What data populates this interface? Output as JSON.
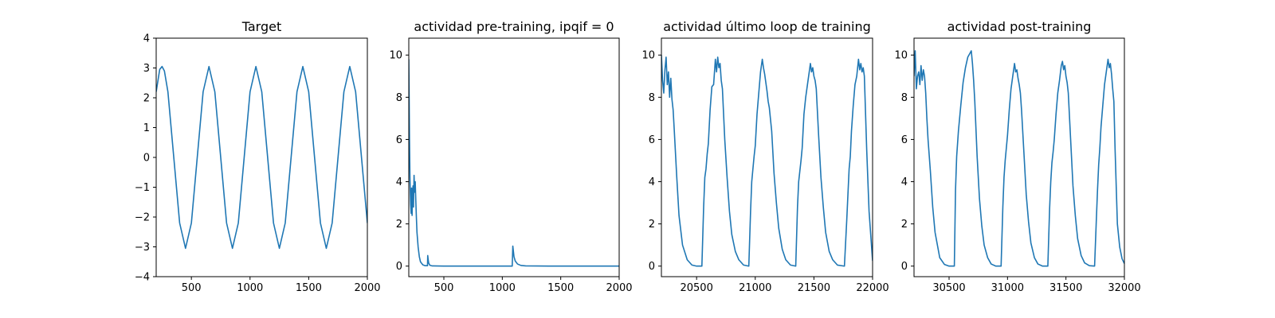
{
  "figure": {
    "line_color": "#1f77b4",
    "background": "#ffffff"
  },
  "chart_data": [
    {
      "type": "line",
      "title": "Target",
      "xlim": [
        200,
        2000
      ],
      "ylim": [
        -4,
        4
      ],
      "xticks": [
        500,
        1000,
        1500,
        2000
      ],
      "yticks": [
        -4,
        -3,
        -2,
        -1,
        0,
        1,
        2,
        3,
        4
      ],
      "xlabel": "",
      "ylabel": "",
      "grid": false,
      "series": [
        {
          "x": [
            200,
            230,
            250,
            270,
            300,
            350,
            400,
            450,
            500,
            550,
            600,
            650,
            700,
            750,
            800,
            850,
            900,
            950,
            1000,
            1050,
            1100,
            1150,
            1200,
            1250,
            1300,
            1350,
            1400,
            1450,
            1500,
            1550,
            1600,
            1650,
            1700,
            1750,
            1800,
            1850,
            1900,
            1950,
            2000
          ],
          "y": [
            2.2,
            2.95,
            3.05,
            2.9,
            2.2,
            0.0,
            -2.2,
            -3.05,
            -2.2,
            0.0,
            2.2,
            3.05,
            2.2,
            0.0,
            -2.2,
            -3.05,
            -2.2,
            0.0,
            2.2,
            3.05,
            2.2,
            0.0,
            -2.2,
            -3.05,
            -2.2,
            0.0,
            2.2,
            3.05,
            2.2,
            0.0,
            -2.2,
            -3.05,
            -2.2,
            0.0,
            2.2,
            3.05,
            2.2,
            0.0,
            -2.2
          ]
        }
      ]
    },
    {
      "type": "line",
      "title": "actividad pre-training, ipqif = 0",
      "xlim": [
        200,
        2000
      ],
      "ylim": [
        -0.5,
        10.8
      ],
      "xticks": [
        500,
        1000,
        1500,
        2000
      ],
      "yticks": [
        0,
        2,
        4,
        6,
        8,
        10
      ],
      "xlabel": "",
      "ylabel": "",
      "grid": false,
      "series": [
        {
          "x": [
            200,
            203,
            206,
            210,
            213,
            216,
            220,
            224,
            228,
            232,
            236,
            240,
            245,
            250,
            255,
            260,
            265,
            270,
            280,
            290,
            300,
            320,
            340,
            360,
            362,
            365,
            370,
            380,
            400,
            500,
            700,
            900,
            1080,
            1085,
            1090,
            1095,
            1100,
            1110,
            1130,
            1160,
            1200,
            1400,
            1600,
            1800,
            2000
          ],
          "y": [
            9.8,
            8.0,
            6.0,
            4.2,
            3.5,
            2.9,
            2.5,
            3.7,
            2.4,
            3.3,
            3.8,
            2.8,
            4.3,
            3.5,
            4.0,
            3.1,
            2.3,
            1.6,
            0.9,
            0.45,
            0.2,
            0.06,
            0.02,
            0.02,
            0.5,
            0.35,
            0.15,
            0.04,
            0.01,
            0.0,
            0.0,
            0.0,
            0.0,
            0.0,
            0.95,
            0.7,
            0.45,
            0.25,
            0.1,
            0.03,
            0.01,
            0.0,
            0.0,
            0.0,
            0.0
          ]
        }
      ]
    },
    {
      "type": "line",
      "title": "actividad último loop de training",
      "xlim": [
        20200,
        22000
      ],
      "ylim": [
        -0.5,
        10.8
      ],
      "xticks": [
        20500,
        21000,
        21500,
        22000
      ],
      "yticks": [
        0,
        2,
        4,
        6,
        8,
        10
      ],
      "xlabel": "",
      "ylabel": "",
      "grid": false,
      "series": [
        {
          "x": [
            20200,
            20210,
            20220,
            20230,
            20240,
            20250,
            20260,
            20270,
            20280,
            20290,
            20300,
            20310,
            20330,
            20350,
            20380,
            20420,
            20460,
            20500,
            20545,
            20560,
            20570,
            20580,
            20590,
            20600,
            20615,
            20630,
            20645,
            20660,
            20670,
            20680,
            20690,
            20700,
            20710,
            20720,
            20740,
            20760,
            20780,
            20800,
            20830,
            20860,
            20900,
            20945,
            20960,
            20970,
            20980,
            20990,
            21000,
            21015,
            21030,
            21045,
            21060,
            21070,
            21080,
            21090,
            21100,
            21110,
            21120,
            21140,
            21160,
            21180,
            21200,
            21230,
            21260,
            21300,
            21345,
            21360,
            21370,
            21380,
            21390,
            21400,
            21415,
            21430,
            21445,
            21460,
            21470,
            21480,
            21490,
            21500,
            21510,
            21520,
            21540,
            21560,
            21580,
            21600,
            21630,
            21660,
            21700,
            21760,
            21780,
            21790,
            21800,
            21810,
            21820,
            21835,
            21850,
            21865,
            21880,
            21890,
            21900,
            21910,
            21920,
            21930,
            21950,
            21970,
            22000
          ],
          "y": [
            10.0,
            8.8,
            8.2,
            9.3,
            9.9,
            8.6,
            9.2,
            8.0,
            8.9,
            7.9,
            7.4,
            6.4,
            4.3,
            2.4,
            1.0,
            0.3,
            0.05,
            0.0,
            0.0,
            2.8,
            4.2,
            4.6,
            5.3,
            5.8,
            7.4,
            8.5,
            8.6,
            9.8,
            9.2,
            9.9,
            9.4,
            9.6,
            8.8,
            8.4,
            6.0,
            4.2,
            2.6,
            1.5,
            0.7,
            0.3,
            0.05,
            0.0,
            2.6,
            4.0,
            4.6,
            5.2,
            5.7,
            7.2,
            8.2,
            9.2,
            9.8,
            9.4,
            9.1,
            8.7,
            8.3,
            7.8,
            7.5,
            6.4,
            4.4,
            3.0,
            1.8,
            0.8,
            0.3,
            0.05,
            0.0,
            2.8,
            4.0,
            4.5,
            5.0,
            5.6,
            7.2,
            8.0,
            8.6,
            9.2,
            9.6,
            9.2,
            9.4,
            9.0,
            8.8,
            8.4,
            6.2,
            4.2,
            2.8,
            1.6,
            0.7,
            0.3,
            0.05,
            0.0,
            2.2,
            3.4,
            4.6,
            5.2,
            6.4,
            7.6,
            8.6,
            9.0,
            9.8,
            9.3,
            9.6,
            9.2,
            9.4,
            9.0,
            5.5,
            2.6,
            0.25
          ]
        }
      ]
    },
    {
      "type": "line",
      "title": "actividad post-training",
      "xlim": [
        30200,
        32000
      ],
      "ylim": [
        -0.5,
        10.8
      ],
      "xticks": [
        30500,
        31000,
        31500,
        32000
      ],
      "yticks": [
        0,
        2,
        4,
        6,
        8,
        10
      ],
      "xlabel": "",
      "ylabel": "",
      "grid": false,
      "series": [
        {
          "x": [
            30200,
            30210,
            30220,
            30230,
            30240,
            30250,
            30260,
            30270,
            30280,
            30290,
            30300,
            30310,
            30320,
            30340,
            30360,
            30380,
            30420,
            30460,
            30500,
            30545,
            30555,
            30565,
            30580,
            30600,
            30620,
            30640,
            30660,
            30680,
            30690,
            30700,
            30710,
            30720,
            30740,
            30760,
            30780,
            30800,
            30830,
            30860,
            30900,
            30945,
            30960,
            30970,
            30980,
            30990,
            31000,
            31015,
            31030,
            31045,
            31060,
            31070,
            31080,
            31090,
            31100,
            31110,
            31120,
            31140,
            31160,
            31180,
            31200,
            31230,
            31260,
            31300,
            31345,
            31360,
            31370,
            31380,
            31390,
            31400,
            31415,
            31430,
            31445,
            31460,
            31470,
            31480,
            31490,
            31500,
            31510,
            31520,
            31540,
            31560,
            31580,
            31600,
            31630,
            31660,
            31700,
            31745,
            31760,
            31770,
            31780,
            31790,
            31800,
            31815,
            31830,
            31845,
            31860,
            31870,
            31880,
            31890,
            31900,
            31910,
            31920,
            31940,
            31960,
            31980,
            32000
          ],
          "y": [
            9.0,
            10.2,
            8.4,
            9.0,
            9.2,
            8.6,
            9.5,
            8.8,
            9.3,
            9.0,
            8.2,
            7.0,
            6.0,
            4.5,
            2.8,
            1.6,
            0.4,
            0.08,
            0.0,
            0.0,
            3.6,
            5.2,
            6.4,
            7.6,
            8.7,
            9.4,
            9.9,
            10.1,
            10.2,
            9.6,
            8.8,
            7.8,
            5.2,
            3.2,
            1.9,
            1.0,
            0.4,
            0.1,
            0.0,
            0.0,
            2.8,
            4.2,
            5.0,
            5.6,
            6.2,
            7.4,
            8.4,
            9.0,
            9.6,
            9.2,
            9.3,
            8.9,
            8.6,
            8.2,
            7.4,
            5.4,
            3.4,
            2.1,
            1.1,
            0.4,
            0.1,
            0.0,
            0.0,
            2.7,
            4.0,
            4.9,
            5.4,
            6.0,
            7.2,
            8.2,
            8.8,
            9.5,
            9.7,
            9.3,
            9.5,
            9.0,
            8.7,
            8.2,
            6.0,
            3.8,
            2.4,
            1.3,
            0.5,
            0.15,
            0.02,
            0.0,
            2.2,
            3.6,
            4.8,
            5.6,
            6.6,
            7.6,
            8.6,
            9.2,
            9.8,
            9.4,
            9.6,
            9.1,
            8.4,
            7.8,
            5.6,
            2.0,
            0.9,
            0.35,
            0.12
          ]
        }
      ]
    }
  ]
}
